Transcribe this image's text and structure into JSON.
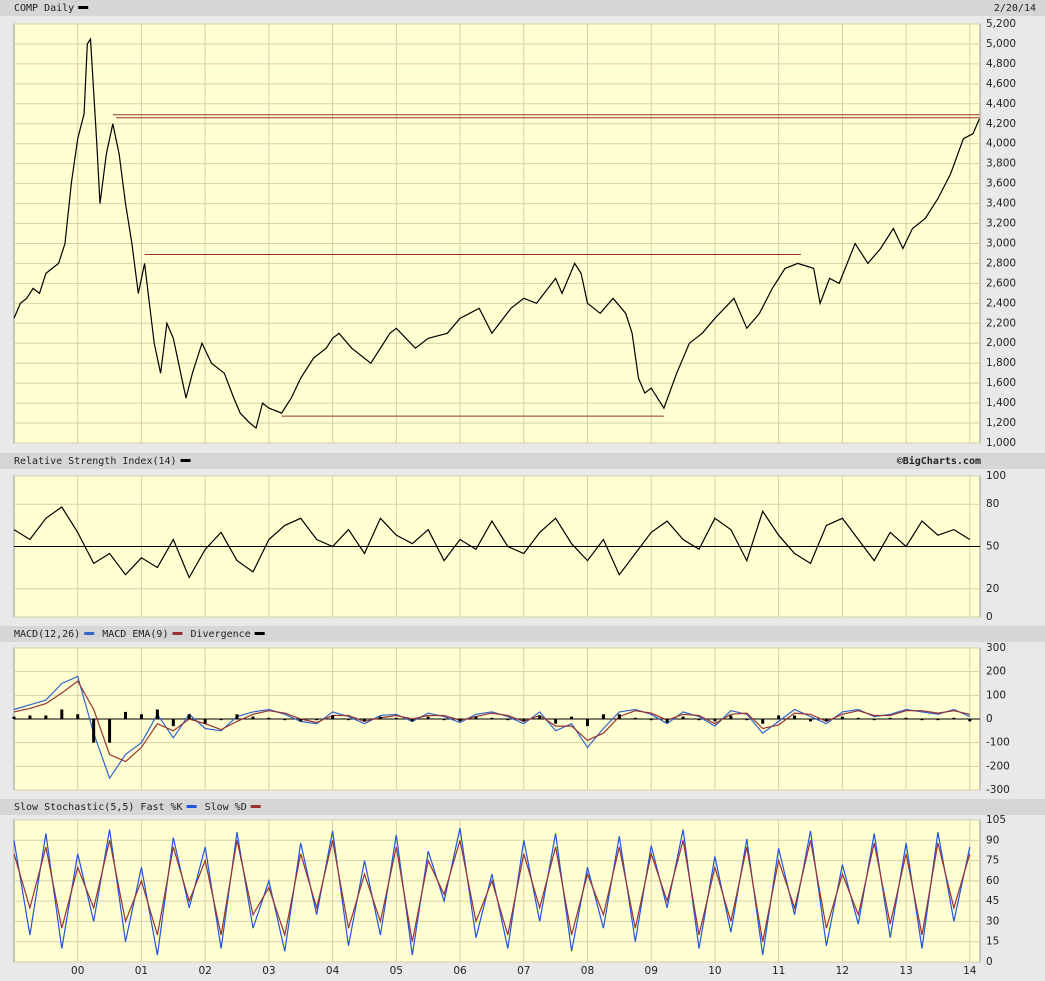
{
  "chart_data": [
    {
      "type": "line",
      "date": "2/20/14",
      "xlim": [
        1999.0,
        2014.16
      ],
      "ylim": [
        1000,
        5200
      ],
      "yticks": [
        {
          "value": 1000,
          "label": "1,000"
        },
        {
          "value": 1200,
          "label": "1,200"
        },
        {
          "value": 1400,
          "label": "1,400"
        },
        {
          "value": 1600,
          "label": "1,600"
        },
        {
          "value": 1800,
          "label": "1,800"
        },
        {
          "value": 2000,
          "label": "2,000"
        },
        {
          "value": 2200,
          "label": "2,200"
        },
        {
          "value": 2400,
          "label": "2,400"
        },
        {
          "value": 2600,
          "label": "2,600"
        },
        {
          "value": 2800,
          "label": "2,800"
        },
        {
          "value": 3000,
          "label": "3,000"
        },
        {
          "value": 3200,
          "label": "3,200"
        },
        {
          "value": 3400,
          "label": "3,400"
        },
        {
          "value": 3600,
          "label": "3,600"
        },
        {
          "value": 3800,
          "label": "3,800"
        },
        {
          "value": 4000,
          "label": "4,000"
        },
        {
          "value": 4200,
          "label": "4,200"
        },
        {
          "value": 4400,
          "label": "4,400"
        },
        {
          "value": 4600,
          "label": "4,600"
        },
        {
          "value": 4800,
          "label": "4,800"
        },
        {
          "value": 5000,
          "label": "5,000"
        },
        {
          "value": 5200,
          "label": "5,200"
        }
      ],
      "grid": true,
      "x": [
        1999.0,
        1999.1,
        1999.2,
        1999.3,
        1999.4,
        1999.5,
        1999.6,
        1999.7,
        1999.8,
        1999.9,
        2000.0,
        2000.1,
        2000.15,
        2000.2,
        2000.3,
        2000.35,
        2000.45,
        2000.55,
        2000.65,
        2000.75,
        2000.85,
        2000.95,
        2001.05,
        2001.2,
        2001.3,
        2001.4,
        2001.5,
        2001.7,
        2001.8,
        2001.95,
        2002.1,
        2002.3,
        2002.45,
        2002.55,
        2002.7,
        2002.8,
        2002.9,
        2003.0,
        2003.2,
        2003.35,
        2003.5,
        2003.7,
        2003.9,
        2004.0,
        2004.1,
        2004.3,
        2004.6,
        2004.9,
        2005.0,
        2005.3,
        2005.5,
        2005.8,
        2006.0,
        2006.3,
        2006.5,
        2006.8,
        2007.0,
        2007.2,
        2007.5,
        2007.6,
        2007.8,
        2007.9,
        2008.0,
        2008.2,
        2008.4,
        2008.6,
        2008.7,
        2008.8,
        2008.9,
        2009.0,
        2009.2,
        2009.4,
        2009.6,
        2009.8,
        2010.0,
        2010.3,
        2010.5,
        2010.7,
        2010.9,
        2011.1,
        2011.3,
        2011.55,
        2011.65,
        2011.8,
        2011.95,
        2012.2,
        2012.4,
        2012.6,
        2012.8,
        2012.95,
        2013.1,
        2013.3,
        2013.5,
        2013.7,
        2013.9,
        2014.05,
        2014.15
      ],
      "series": [
        {
          "name": "COMP Daily",
          "color": "#000000",
          "values": [
            2250,
            2400,
            2450,
            2550,
            2500,
            2700,
            2750,
            2800,
            3000,
            3600,
            4050,
            4300,
            5000,
            5050,
            4000,
            3400,
            3900,
            4200,
            3900,
            3400,
            3000,
            2500,
            2800,
            2000,
            1700,
            2200,
            2050,
            1450,
            1700,
            2000,
            1800,
            1700,
            1450,
            1300,
            1200,
            1150,
            1400,
            1350,
            1300,
            1450,
            1650,
            1850,
            1950,
            2050,
            2100,
            1950,
            1800,
            2100,
            2150,
            1950,
            2050,
            2100,
            2250,
            2350,
            2100,
            2350,
            2450,
            2400,
            2650,
            2500,
            2800,
            2700,
            2400,
            2300,
            2450,
            2300,
            2100,
            1650,
            1500,
            1550,
            1350,
            1700,
            2000,
            2100,
            2250,
            2450,
            2150,
            2300,
            2550,
            2750,
            2800,
            2750,
            2400,
            2650,
            2600,
            3000,
            2800,
            2950,
            3150,
            2950,
            3150,
            3250,
            3450,
            3700,
            4050,
            4100,
            4250
          ]
        }
      ],
      "lines": [
        {
          "y": 4290,
          "x": [
            2000.55,
            2014.15
          ]
        },
        {
          "y": 4260,
          "x": [
            2000.6,
            2014.15
          ]
        },
        {
          "y": 2890,
          "x": [
            2001.05,
            2011.35
          ]
        },
        {
          "y": 1270,
          "x": [
            2003.2,
            2009.2
          ]
        }
      ],
      "line_color": "#993333"
    },
    {
      "type": "line",
      "source": "©BigCharts.com",
      "xlim": [
        1999.0,
        2014.16
      ],
      "ylim": [
        0,
        100
      ],
      "yticks": [
        0,
        20,
        50,
        80,
        100
      ],
      "grid": true,
      "ref_line": 50,
      "x": [
        1999.0,
        1999.25,
        1999.5,
        1999.75,
        2000.0,
        2000.25,
        2000.5,
        2000.75,
        2001.0,
        2001.25,
        2001.5,
        2001.75,
        2002.0,
        2002.25,
        2002.5,
        2002.75,
        2003.0,
        2003.25,
        2003.5,
        2003.75,
        2004.0,
        2004.25,
        2004.5,
        2004.75,
        2005.0,
        2005.25,
        2005.5,
        2005.75,
        2006.0,
        2006.25,
        2006.5,
        2006.75,
        2007.0,
        2007.25,
        2007.5,
        2007.75,
        2008.0,
        2008.25,
        2008.5,
        2008.75,
        2009.0,
        2009.25,
        2009.5,
        2009.75,
        2010.0,
        2010.25,
        2010.5,
        2010.75,
        2011.0,
        2011.25,
        2011.5,
        2011.75,
        2012.0,
        2012.25,
        2012.5,
        2012.75,
        2013.0,
        2013.25,
        2013.5,
        2013.75,
        2014.0
      ],
      "series": [
        {
          "name": "Relative Strength Index(14)",
          "color": "#000000",
          "values": [
            62,
            55,
            70,
            78,
            60,
            38,
            45,
            30,
            42,
            35,
            55,
            28,
            48,
            60,
            40,
            32,
            55,
            65,
            70,
            55,
            50,
            62,
            45,
            70,
            58,
            52,
            62,
            40,
            55,
            48,
            68,
            50,
            45,
            60,
            70,
            52,
            40,
            55,
            30,
            45,
            60,
            68,
            55,
            48,
            70,
            62,
            40,
            75,
            58,
            45,
            38,
            65,
            70,
            55,
            40,
            60,
            50,
            68,
            58,
            62,
            55
          ]
        }
      ]
    },
    {
      "type": "line",
      "xlim": [
        1999.0,
        2014.16
      ],
      "ylim": [
        -300,
        300
      ],
      "yticks": [
        -300,
        -200,
        -100,
        0,
        100,
        200,
        300
      ],
      "grid": true,
      "ref_line": 0,
      "x": [
        1999.0,
        1999.25,
        1999.5,
        1999.75,
        2000.0,
        2000.25,
        2000.5,
        2000.75,
        2001.0,
        2001.25,
        2001.5,
        2001.75,
        2002.0,
        2002.25,
        2002.5,
        2002.75,
        2003.0,
        2003.25,
        2003.5,
        2003.75,
        2004.0,
        2004.25,
        2004.5,
        2004.75,
        2005.0,
        2005.25,
        2005.5,
        2005.75,
        2006.0,
        2006.25,
        2006.5,
        2006.75,
        2007.0,
        2007.25,
        2007.5,
        2007.75,
        2008.0,
        2008.25,
        2008.5,
        2008.75,
        2009.0,
        2009.25,
        2009.5,
        2009.75,
        2010.0,
        2010.25,
        2010.5,
        2010.75,
        2011.0,
        2011.25,
        2011.5,
        2011.75,
        2012.0,
        2012.25,
        2012.5,
        2012.75,
        2013.0,
        2013.25,
        2013.5,
        2013.75,
        2014.0
      ],
      "series": [
        {
          "name": "MACD(12,26)",
          "color": "#3366cc",
          "values": [
            40,
            60,
            80,
            150,
            180,
            -60,
            -250,
            -150,
            -100,
            20,
            -80,
            20,
            -40,
            -50,
            10,
            30,
            40,
            20,
            -10,
            -20,
            30,
            10,
            -20,
            15,
            20,
            -10,
            25,
            10,
            -15,
            20,
            30,
            10,
            -20,
            30,
            -50,
            -20,
            -120,
            -40,
            30,
            40,
            20,
            -20,
            30,
            10,
            -30,
            35,
            20,
            -60,
            -10,
            40,
            10,
            -20,
            30,
            40,
            10,
            20,
            40,
            30,
            20,
            40,
            10
          ]
        },
        {
          "name": "MACD EMA(9)",
          "color": "#993333",
          "values": [
            30,
            45,
            65,
            110,
            160,
            40,
            -150,
            -180,
            -120,
            -20,
            -50,
            0,
            -20,
            -45,
            -10,
            20,
            35,
            25,
            0,
            -15,
            15,
            15,
            -10,
            5,
            15,
            0,
            15,
            15,
            -5,
            10,
            25,
            15,
            -10,
            15,
            -30,
            -30,
            -90,
            -60,
            10,
            35,
            25,
            -5,
            20,
            15,
            -20,
            20,
            25,
            -40,
            -25,
            25,
            20,
            -10,
            20,
            35,
            15,
            15,
            35,
            35,
            25,
            35,
            20
          ]
        },
        {
          "name": "Divergence",
          "color": "#000000",
          "kind": "bar",
          "values": [
            10,
            15,
            15,
            40,
            20,
            -100,
            -100,
            30,
            20,
            40,
            -30,
            20,
            -20,
            -5,
            20,
            10,
            5,
            -5,
            -10,
            -5,
            15,
            -5,
            -10,
            10,
            5,
            -10,
            10,
            -5,
            -10,
            10,
            5,
            -5,
            -10,
            15,
            -20,
            10,
            -30,
            20,
            20,
            5,
            -5,
            -15,
            10,
            -5,
            -10,
            15,
            -5,
            -20,
            15,
            15,
            -10,
            -10,
            10,
            5,
            -5,
            5,
            5,
            -5,
            -5,
            5,
            -10
          ]
        }
      ]
    },
    {
      "type": "line",
      "xlim": [
        1999.0,
        2014.16
      ],
      "ylim": [
        0,
        105
      ],
      "yticks": [
        0,
        15,
        30,
        45,
        60,
        75,
        90,
        105
      ],
      "grid": true,
      "xticks": [
        {
          "value": 2000,
          "label": "00"
        },
        {
          "value": 2001,
          "label": "01"
        },
        {
          "value": 2002,
          "label": "02"
        },
        {
          "value": 2003,
          "label": "03"
        },
        {
          "value": 2004,
          "label": "04"
        },
        {
          "value": 2005,
          "label": "05"
        },
        {
          "value": 2006,
          "label": "06"
        },
        {
          "value": 2007,
          "label": "07"
        },
        {
          "value": 2008,
          "label": "08"
        },
        {
          "value": 2009,
          "label": "09"
        },
        {
          "value": 2010,
          "label": "10"
        },
        {
          "value": 2011,
          "label": "11"
        },
        {
          "value": 2012,
          "label": "12"
        },
        {
          "value": 2013,
          "label": "13"
        },
        {
          "value": 2014,
          "label": "14"
        }
      ],
      "x": [
        1999.0,
        1999.25,
        1999.5,
        1999.75,
        2000.0,
        2000.25,
        2000.5,
        2000.75,
        2001.0,
        2001.25,
        2001.5,
        2001.75,
        2002.0,
        2002.25,
        2002.5,
        2002.75,
        2003.0,
        2003.25,
        2003.5,
        2003.75,
        2004.0,
        2004.25,
        2004.5,
        2004.75,
        2005.0,
        2005.25,
        2005.5,
        2005.75,
        2006.0,
        2006.25,
        2006.5,
        2006.75,
        2007.0,
        2007.25,
        2007.5,
        2007.75,
        2008.0,
        2008.25,
        2008.5,
        2008.75,
        2009.0,
        2009.25,
        2009.5,
        2009.75,
        2010.0,
        2010.25,
        2010.5,
        2010.75,
        2011.0,
        2011.25,
        2011.5,
        2011.75,
        2012.0,
        2012.25,
        2012.5,
        2012.75,
        2013.0,
        2013.25,
        2013.5,
        2013.75,
        2014.0
      ],
      "series": [
        {
          "name": "Slow Stochastic(5,5) Fast %K",
          "color": "#2255dd",
          "values": [
            90,
            20,
            95,
            10,
            80,
            30,
            98,
            15,
            70,
            5,
            92,
            40,
            85,
            10,
            96,
            25,
            60,
            8,
            88,
            35,
            97,
            12,
            75,
            20,
            94,
            5,
            82,
            45,
            99,
            18,
            65,
            10,
            90,
            30,
            95,
            8,
            70,
            25,
            93,
            15,
            86,
            40,
            98,
            10,
            78,
            22,
            91,
            5,
            84,
            35,
            97,
            12,
            72,
            28,
            95,
            18,
            88,
            10,
            96,
            30,
            85
          ]
        },
        {
          "name": "Slow %D",
          "color": "#993333",
          "values": [
            80,
            40,
            85,
            25,
            70,
            40,
            90,
            30,
            60,
            20,
            85,
            45,
            75,
            20,
            90,
            35,
            55,
            20,
            80,
            40,
            90,
            25,
            65,
            30,
            85,
            15,
            75,
            50,
            90,
            30,
            60,
            20,
            80,
            40,
            85,
            20,
            65,
            35,
            85,
            25,
            80,
            45,
            90,
            20,
            70,
            30,
            85,
            15,
            75,
            40,
            90,
            25,
            65,
            35,
            88,
            28,
            80,
            20,
            88,
            40,
            80
          ]
        }
      ]
    }
  ]
}
